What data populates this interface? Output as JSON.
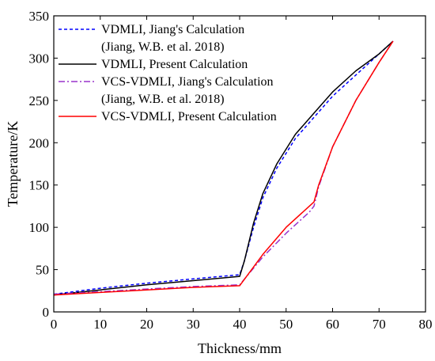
{
  "chart_data": {
    "type": "line",
    "xlabel": "Thickness/mm",
    "ylabel": "Temperature/K",
    "xlim": [
      0,
      80
    ],
    "ylim": [
      0,
      350
    ],
    "xticks": [
      0,
      10,
      20,
      30,
      40,
      50,
      60,
      70,
      80
    ],
    "yticks": [
      0,
      50,
      100,
      150,
      200,
      250,
      300,
      350
    ],
    "grid": false,
    "legend_position": "top-left",
    "series": [
      {
        "name": "VDMLI, Jiang's Calculation",
        "note": "(Jiang, W.B. et al. 2018)",
        "color": "#0000ff",
        "style": "dashed",
        "x": [
          0,
          10,
          20,
          30,
          40,
          41,
          43,
          45,
          48,
          52,
          56,
          60,
          65,
          70,
          73
        ],
        "y": [
          21,
          28,
          34,
          39,
          44,
          60,
          100,
          135,
          170,
          205,
          230,
          255,
          280,
          305,
          320
        ]
      },
      {
        "name": "VDMLI, Present Calculation",
        "color": "#000000",
        "style": "solid",
        "x": [
          0,
          10,
          20,
          30,
          40,
          41,
          43,
          45,
          48,
          52,
          56,
          60,
          65,
          70,
          73
        ],
        "y": [
          20,
          26,
          32,
          37,
          42,
          60,
          105,
          140,
          175,
          210,
          235,
          260,
          285,
          305,
          320
        ]
      },
      {
        "name": "VCS-VDMLI, Jiang's Calculation",
        "note": "(Jiang, W.B. et al. 2018)",
        "color": "#9933cc",
        "style": "dashdot",
        "x": [
          0,
          10,
          20,
          30,
          40,
          45,
          50,
          55,
          56,
          57,
          60,
          65,
          70,
          73
        ],
        "y": [
          21,
          24,
          27,
          30,
          32,
          65,
          93,
          118,
          125,
          148,
          195,
          250,
          295,
          320
        ]
      },
      {
        "name": "VCS-VDMLI, Present Calculation",
        "color": "#ff0000",
        "style": "solid",
        "x": [
          0,
          10,
          20,
          30,
          40,
          45,
          50,
          55,
          56,
          57,
          60,
          65,
          70,
          73
        ],
        "y": [
          20,
          23,
          26,
          29,
          31,
          68,
          100,
          125,
          130,
          150,
          195,
          250,
          295,
          320
        ]
      }
    ]
  }
}
